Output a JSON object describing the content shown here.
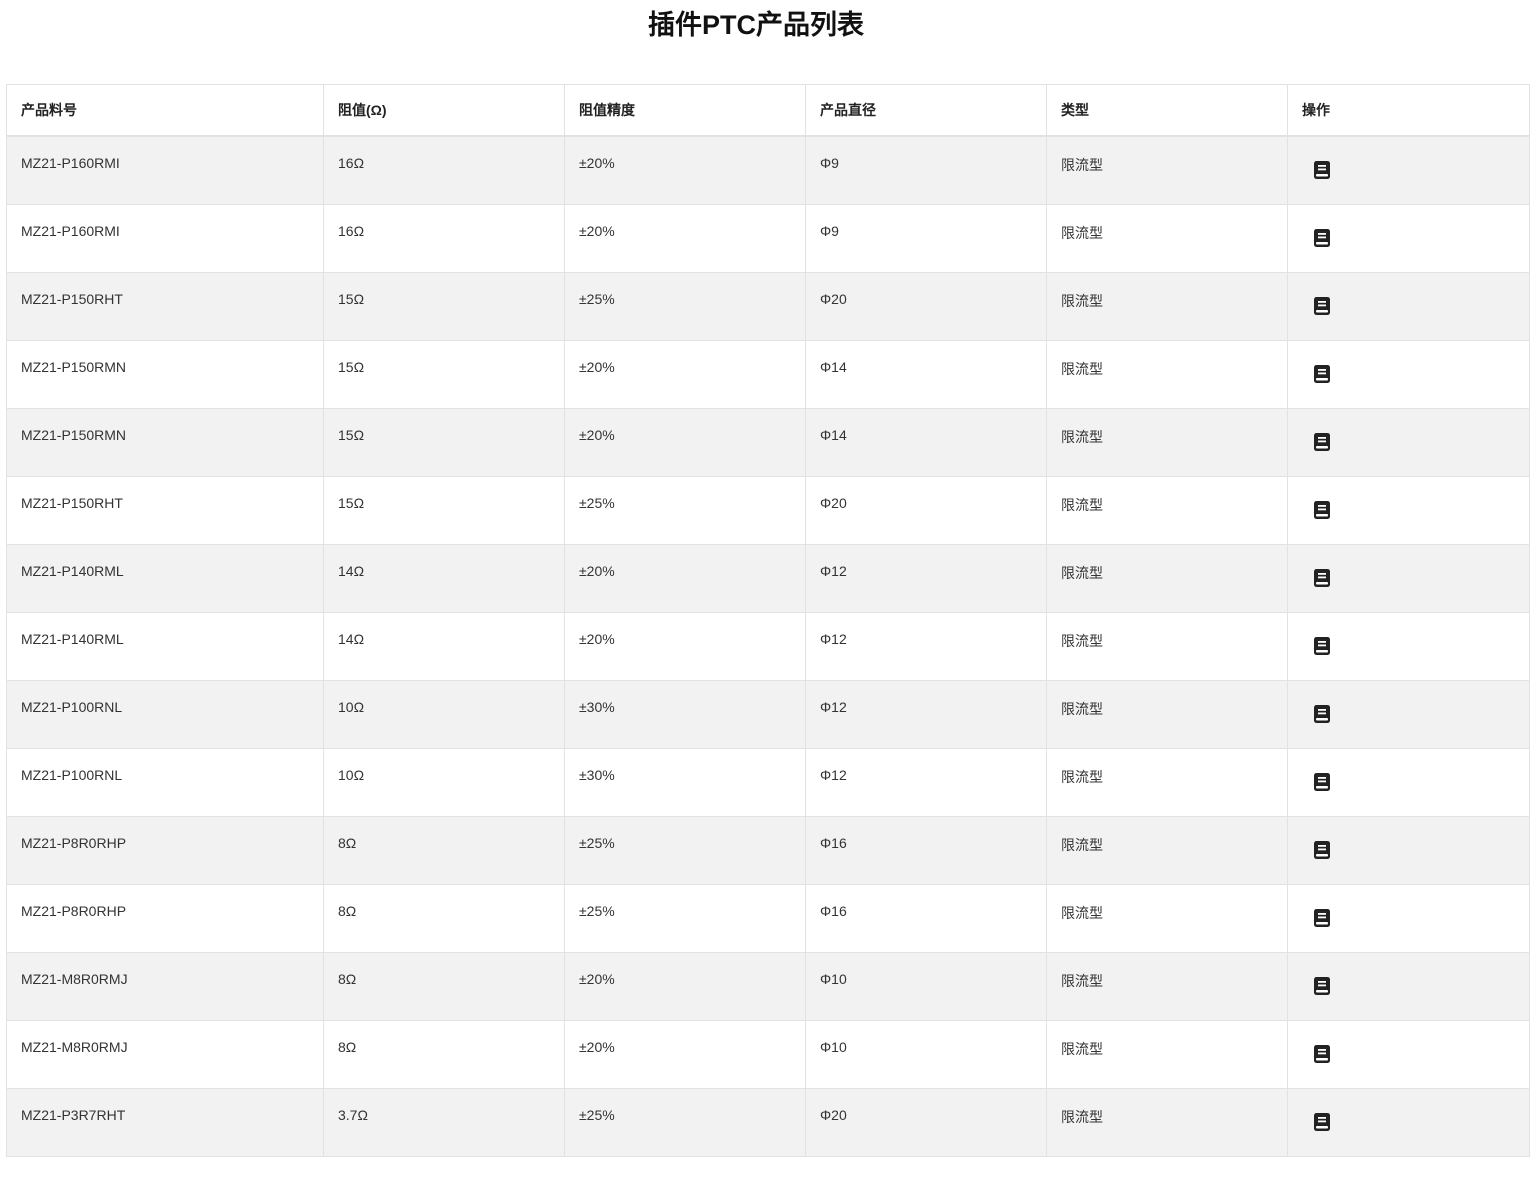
{
  "title": "插件PTC产品列表",
  "columns": [
    "产品料号",
    "阻值(Ω)",
    "阻值精度",
    "产品直径",
    "类型",
    "操作"
  ],
  "action_icon": "book-icon",
  "rows": [
    [
      "MZ21-P160RMI",
      "16Ω",
      "±20%",
      "Φ9",
      "限流型"
    ],
    [
      "MZ21-P160RMI",
      "16Ω",
      "±20%",
      "Φ9",
      "限流型"
    ],
    [
      "MZ21-P150RHT",
      "15Ω",
      "±25%",
      "Φ20",
      "限流型"
    ],
    [
      "MZ21-P150RMN",
      "15Ω",
      "±20%",
      "Φ14",
      "限流型"
    ],
    [
      "MZ21-P150RMN",
      "15Ω",
      "±20%",
      "Φ14",
      "限流型"
    ],
    [
      "MZ21-P150RHT",
      "15Ω",
      "±25%",
      "Φ20",
      "限流型"
    ],
    [
      "MZ21-P140RML",
      "14Ω",
      "±20%",
      "Φ12",
      "限流型"
    ],
    [
      "MZ21-P140RML",
      "14Ω",
      "±20%",
      "Φ12",
      "限流型"
    ],
    [
      "MZ21-P100RNL",
      "10Ω",
      "±30%",
      "Φ12",
      "限流型"
    ],
    [
      "MZ21-P100RNL",
      "10Ω",
      "±30%",
      "Φ12",
      "限流型"
    ],
    [
      "MZ21-P8R0RHP",
      "8Ω",
      "±25%",
      "Φ16",
      "限流型"
    ],
    [
      "MZ21-P8R0RHP",
      "8Ω",
      "±25%",
      "Φ16",
      "限流型"
    ],
    [
      "MZ21-M8R0RMJ",
      "8Ω",
      "±20%",
      "Φ10",
      "限流型"
    ],
    [
      "MZ21-M8R0RMJ",
      "8Ω",
      "±20%",
      "Φ10",
      "限流型"
    ],
    [
      "MZ21-P3R7RHT",
      "3.7Ω",
      "±25%",
      "Φ20",
      "限流型"
    ]
  ]
}
